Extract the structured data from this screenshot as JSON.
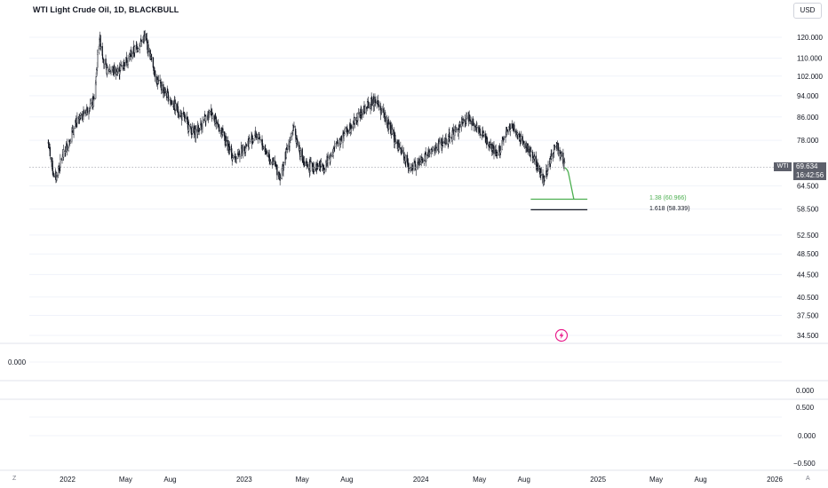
{
  "header": {
    "symbol_title": "WTI Light Crude Oil, 1D, BLACKBULL",
    "currency_button": "USD"
  },
  "price_axis": {
    "ticks": [
      "120.000",
      "110.000",
      "102.000",
      "94.000",
      "86.000",
      "78.000",
      "64.500",
      "58.500",
      "52.500",
      "48.500",
      "44.500",
      "40.500",
      "37.500",
      "34.500"
    ],
    "current_symbol": "WTI",
    "current_price": "69.634",
    "countdown": "16:42:56"
  },
  "fib_levels": [
    {
      "label": "1.38 (60.966)",
      "color": "#4caf50"
    },
    {
      "label": "1.618 (58.339)",
      "color": "#131722"
    }
  ],
  "indicator_panes": [
    {
      "value_label": "0.000",
      "axis_ticks": [
        "0.000"
      ]
    },
    {
      "axis_ticks": [
        "0.500",
        "0.000",
        "−0.500"
      ]
    }
  ],
  "time_axis": {
    "labels": [
      "2022",
      "May",
      "Aug",
      "2023",
      "May",
      "Aug",
      "2024",
      "May",
      "Aug",
      "2025",
      "May",
      "Aug",
      "2026"
    ]
  },
  "footer": {
    "left_corner": "Z",
    "right_corner": "A"
  },
  "colors": {
    "candle": "#131722",
    "projection": "#4caf50",
    "price_tag_bg": "#5d606b",
    "flash_icon": "#e91e8c"
  },
  "chart_data": {
    "type": "candlestick",
    "title": "WTI Light Crude Oil, 1D, BLACKBULL",
    "y_scale": "log",
    "ylim": [
      34.5,
      125
    ],
    "x_range": [
      "2021-11",
      "2026-01"
    ],
    "close_path": [
      {
        "x": "2021-11-20",
        "y": 79
      },
      {
        "x": "2021-12-05",
        "y": 66
      },
      {
        "x": "2021-12-20",
        "y": 72
      },
      {
        "x": "2022-01-20",
        "y": 84
      },
      {
        "x": "2022-02-25",
        "y": 92
      },
      {
        "x": "2022-03-08",
        "y": 120
      },
      {
        "x": "2022-03-20",
        "y": 105
      },
      {
        "x": "2022-04-15",
        "y": 104
      },
      {
        "x": "2022-06-10",
        "y": 120
      },
      {
        "x": "2022-07-05",
        "y": 100
      },
      {
        "x": "2022-08-10",
        "y": 90
      },
      {
        "x": "2022-09-20",
        "y": 80
      },
      {
        "x": "2022-10-25",
        "y": 88
      },
      {
        "x": "2022-12-10",
        "y": 72
      },
      {
        "x": "2023-01-25",
        "y": 80
      },
      {
        "x": "2023-03-17",
        "y": 67
      },
      {
        "x": "2023-04-12",
        "y": 82
      },
      {
        "x": "2023-05-05",
        "y": 70
      },
      {
        "x": "2023-06-15",
        "y": 70
      },
      {
        "x": "2023-07-25",
        "y": 80
      },
      {
        "x": "2023-09-28",
        "y": 93
      },
      {
        "x": "2023-11-15",
        "y": 76
      },
      {
        "x": "2023-12-12",
        "y": 69
      },
      {
        "x": "2024-02-15",
        "y": 77
      },
      {
        "x": "2024-04-10",
        "y": 86
      },
      {
        "x": "2024-06-05",
        "y": 73
      },
      {
        "x": "2024-07-05",
        "y": 83
      },
      {
        "x": "2024-08-20",
        "y": 73
      },
      {
        "x": "2024-09-10",
        "y": 66
      },
      {
        "x": "2024-10-07",
        "y": 77
      },
      {
        "x": "2024-10-24",
        "y": 70
      }
    ],
    "last_price": 69.634,
    "projection_path": [
      {
        "x": "2024-10-24",
        "y": 69.6
      },
      {
        "x": "2024-10-30",
        "y": 69.1
      },
      {
        "x": "2024-11-12",
        "y": 60.966
      }
    ],
    "fib_extensions": [
      {
        "ratio": 1.38,
        "price": 60.966
      },
      {
        "ratio": 1.618,
        "price": 58.339
      }
    ]
  }
}
